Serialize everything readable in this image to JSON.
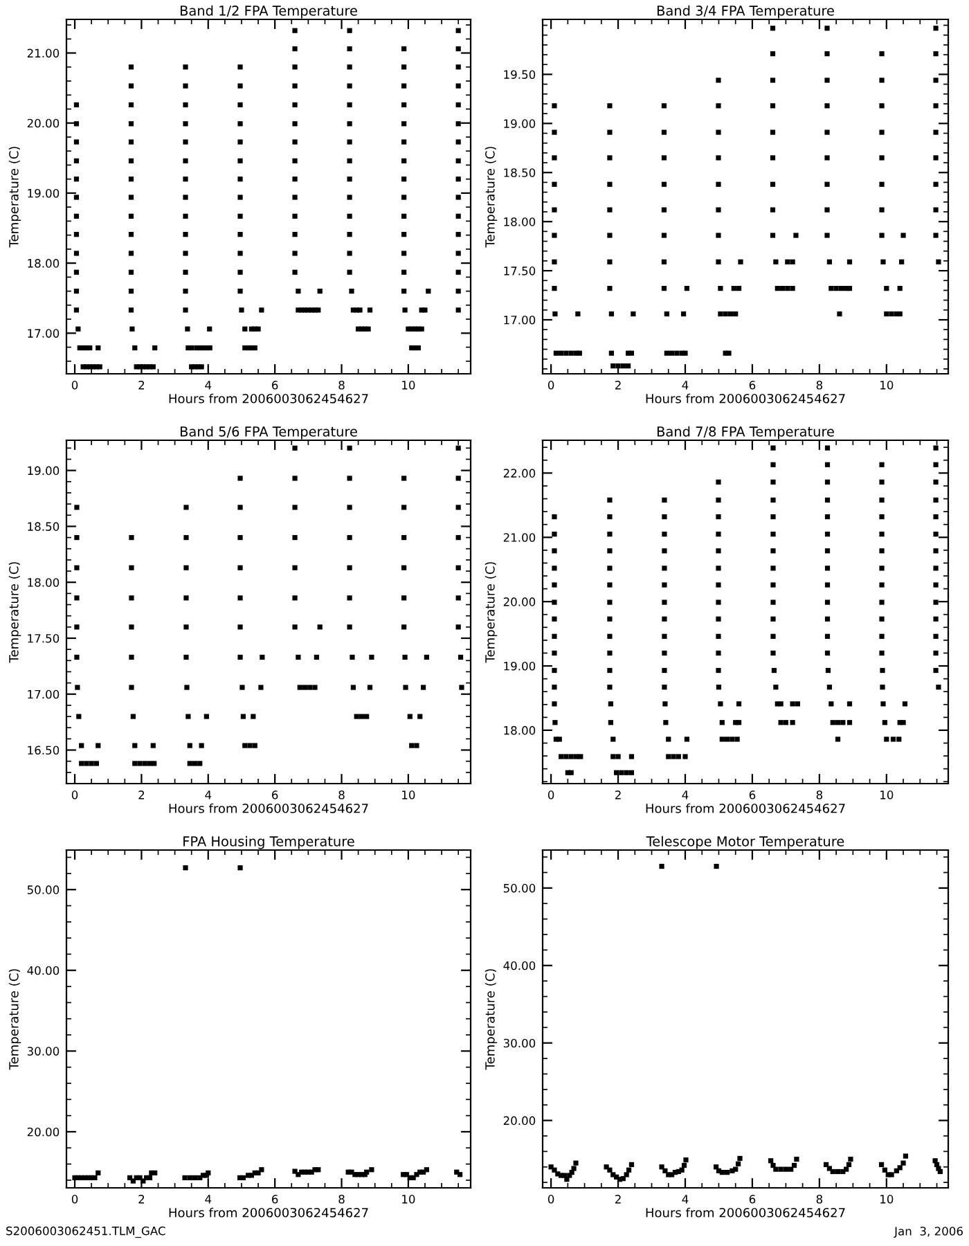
{
  "chart_data": [
    {
      "type": "scatter",
      "title": "Band 1/2 FPA Temperature",
      "xlabel": "Hours from 2006003062454627",
      "ylabel": "Temperature (C)",
      "marker": "square",
      "xlim": [
        -0.25,
        11.87
      ],
      "xticks": [
        0,
        2,
        4,
        6,
        8,
        10
      ],
      "ylim": [
        16.42,
        21.48
      ],
      "yticks": [
        {
          "value": 17,
          "label": "17.00"
        },
        {
          "value": 18,
          "label": "18.00"
        },
        {
          "value": 19,
          "label": "19.00"
        },
        {
          "value": 20,
          "label": "20.00"
        },
        {
          "value": 21,
          "label": "21.00"
        }
      ],
      "series": [
        {
          "color": "#000000",
          "x": [
            0.05,
            0.05,
            0.05,
            0.05,
            0.05,
            0.05,
            0.05,
            0.05,
            0.05,
            0.05,
            0.05,
            0.05,
            0.1,
            0.15,
            0.25,
            0.35,
            0.45,
            0.7,
            0.25,
            0.35,
            0.45,
            0.55,
            0.65,
            0.75
          ],
          "values": [
            20.26,
            19.99,
            19.73,
            19.46,
            19.2,
            18.94,
            18.67,
            18.41,
            18.14,
            17.87,
            17.6,
            17.33,
            17.06,
            16.79,
            16.79,
            16.79,
            16.79,
            16.79,
            16.52,
            16.52,
            16.52,
            16.52,
            16.52,
            16.52
          ]
        },
        {
          "color": "#000000",
          "x": [
            1.69,
            1.69,
            1.69,
            1.69,
            1.69,
            1.69,
            1.69,
            1.69,
            1.69,
            1.69,
            1.69,
            1.69,
            1.69,
            1.69,
            1.72,
            1.8,
            2.4,
            1.85,
            1.95,
            2.05,
            2.15,
            2.25,
            2.35
          ],
          "values": [
            20.8,
            20.53,
            20.26,
            19.99,
            19.73,
            19.46,
            19.2,
            18.94,
            18.67,
            18.41,
            18.14,
            17.87,
            17.6,
            17.33,
            17.06,
            16.79,
            16.79,
            16.52,
            16.52,
            16.52,
            16.52,
            16.52,
            16.52
          ]
        },
        {
          "color": "#000000",
          "x": [
            3.32,
            3.32,
            3.32,
            3.32,
            3.32,
            3.32,
            3.32,
            3.32,
            3.32,
            3.32,
            3.32,
            3.32,
            3.32,
            3.32,
            3.38,
            4.04,
            3.4,
            3.5,
            3.65,
            3.75,
            3.85,
            3.95,
            4.05,
            3.5,
            3.6,
            3.7,
            3.8
          ],
          "values": [
            20.8,
            20.53,
            20.26,
            19.99,
            19.73,
            19.46,
            19.2,
            18.94,
            18.67,
            18.41,
            18.14,
            17.87,
            17.6,
            17.33,
            17.06,
            17.06,
            16.79,
            16.79,
            16.79,
            16.79,
            16.79,
            16.79,
            16.79,
            16.52,
            16.52,
            16.52,
            16.52
          ]
        },
        {
          "color": "#000000",
          "x": [
            4.96,
            4.96,
            4.96,
            4.96,
            4.96,
            4.96,
            4.96,
            4.96,
            4.96,
            4.96,
            4.96,
            4.96,
            4.96,
            5.0,
            5.6,
            5.1,
            5.3,
            5.4,
            5.5,
            5.1,
            5.2,
            5.3,
            5.4
          ],
          "values": [
            20.8,
            20.53,
            20.26,
            19.99,
            19.73,
            19.46,
            19.2,
            18.94,
            18.67,
            18.41,
            18.14,
            17.87,
            17.6,
            17.33,
            17.33,
            17.06,
            17.06,
            17.06,
            17.06,
            16.79,
            16.79,
            16.79,
            16.79
          ]
        },
        {
          "color": "#000000",
          "x": [
            6.6,
            6.6,
            6.6,
            6.6,
            6.6,
            6.6,
            6.6,
            6.6,
            6.6,
            6.6,
            6.6,
            6.6,
            6.6,
            6.6,
            6.7,
            7.35,
            6.7,
            6.8,
            6.9,
            7.0,
            7.1,
            7.2,
            7.3
          ],
          "values": [
            21.32,
            21.06,
            20.8,
            20.53,
            20.26,
            19.99,
            19.73,
            19.46,
            19.2,
            18.94,
            18.67,
            18.41,
            18.14,
            17.87,
            17.6,
            17.6,
            17.33,
            17.33,
            17.33,
            17.33,
            17.33,
            17.33,
            17.33
          ]
        },
        {
          "color": "#000000",
          "x": [
            8.24,
            8.24,
            8.24,
            8.24,
            8.24,
            8.24,
            8.24,
            8.24,
            8.24,
            8.24,
            8.24,
            8.24,
            8.24,
            8.24,
            8.3,
            8.35,
            8.45,
            8.55,
            8.85,
            8.5,
            8.6,
            8.7,
            8.8
          ],
          "values": [
            21.32,
            21.06,
            20.8,
            20.53,
            20.26,
            19.99,
            19.73,
            19.46,
            19.2,
            18.94,
            18.67,
            18.41,
            18.14,
            17.87,
            17.6,
            17.33,
            17.33,
            17.33,
            17.33,
            17.06,
            17.06,
            17.06,
            17.06
          ]
        },
        {
          "color": "#000000",
          "x": [
            9.87,
            9.87,
            9.87,
            9.87,
            9.87,
            9.87,
            9.87,
            9.87,
            9.87,
            9.87,
            9.87,
            9.87,
            9.87,
            9.87,
            9.9,
            10.0,
            10.1,
            10.2,
            10.3,
            10.4,
            10.1,
            10.2,
            10.3,
            10.4,
            10.5,
            10.6
          ],
          "values": [
            21.06,
            20.8,
            20.53,
            20.26,
            19.99,
            19.73,
            19.46,
            19.2,
            18.94,
            18.67,
            18.41,
            18.14,
            17.87,
            17.6,
            17.33,
            17.06,
            17.06,
            17.06,
            17.06,
            17.06,
            16.79,
            16.79,
            16.79,
            17.33,
            17.33,
            17.6
          ]
        },
        {
          "color": "#000000",
          "x": [
            11.5,
            11.5,
            11.5,
            11.5,
            11.5,
            11.5,
            11.5,
            11.5,
            11.5,
            11.5,
            11.5,
            11.5,
            11.5,
            11.5,
            11.5,
            11.5
          ],
          "values": [
            21.32,
            21.06,
            20.8,
            20.53,
            20.26,
            19.99,
            19.73,
            19.46,
            19.2,
            18.94,
            18.67,
            18.41,
            18.14,
            17.87,
            17.6,
            17.33
          ]
        }
      ]
    },
    {
      "type": "scatter",
      "title": "Band 3/4 FPA Temperature",
      "xlabel": "Hours from 2006003062454627",
      "ylabel": "Temperature (C)",
      "marker": "square",
      "xlim": [
        -0.25,
        11.84
      ],
      "xticks": [
        0,
        2,
        4,
        6,
        8,
        10
      ],
      "ylim": [
        16.45,
        20.06
      ],
      "yticks": [
        {
          "value": 17,
          "label": "17.00"
        },
        {
          "value": 17.5,
          "label": "17.50"
        },
        {
          "value": 18,
          "label": "18.00"
        },
        {
          "value": 18.5,
          "label": "18.50"
        },
        {
          "value": 19,
          "label": "19.00"
        },
        {
          "value": 19.5,
          "label": "19.50"
        }
      ],
      "series": [
        {
          "color": "#000000",
          "x": [
            0.1,
            0.1,
            0.1,
            0.1,
            0.1,
            0.1,
            0.1,
            0.1,
            0.12,
            0.8,
            0.15,
            0.3,
            0.45,
            0.6,
            0.75,
            0.85
          ],
          "values": [
            19.18,
            18.91,
            18.65,
            18.38,
            18.12,
            17.86,
            17.59,
            17.32,
            17.06,
            17.06,
            16.66,
            16.66,
            16.66,
            16.66,
            16.66,
            16.66
          ]
        },
        {
          "color": "#000000",
          "x": [
            1.75,
            1.75,
            1.75,
            1.75,
            1.75,
            1.75,
            1.75,
            1.75,
            1.8,
            2.45,
            1.8,
            2.3,
            2.4,
            1.85,
            2.0,
            2.15,
            2.3
          ],
          "values": [
            19.18,
            18.91,
            18.65,
            18.38,
            18.12,
            17.86,
            17.59,
            17.32,
            17.06,
            17.06,
            16.66,
            16.66,
            16.66,
            16.53,
            16.53,
            16.53,
            16.53
          ]
        },
        {
          "color": "#000000",
          "x": [
            3.37,
            3.37,
            3.37,
            3.37,
            3.37,
            3.37,
            3.37,
            3.37,
            4.05,
            3.45,
            3.95,
            3.45,
            3.6,
            3.75,
            3.9,
            4.0
          ],
          "values": [
            19.18,
            18.91,
            18.65,
            18.38,
            18.12,
            17.86,
            17.59,
            17.32,
            17.32,
            17.06,
            17.06,
            16.66,
            16.66,
            16.66,
            16.66,
            16.66
          ]
        },
        {
          "color": "#000000",
          "x": [
            4.99,
            4.99,
            4.99,
            4.99,
            4.99,
            4.99,
            4.99,
            4.99,
            5.65,
            5.05,
            5.45,
            5.6,
            5.05,
            5.2,
            5.35,
            5.5,
            5.2,
            5.3
          ],
          "values": [
            19.44,
            19.18,
            18.91,
            18.65,
            18.38,
            18.12,
            17.86,
            17.59,
            17.59,
            17.32,
            17.32,
            17.32,
            17.06,
            17.06,
            17.06,
            17.06,
            16.66,
            16.66
          ]
        },
        {
          "color": "#000000",
          "x": [
            6.61,
            6.61,
            6.61,
            6.61,
            6.61,
            6.61,
            6.61,
            6.61,
            6.61,
            7.3,
            6.7,
            7.05,
            7.2,
            6.75,
            6.9,
            7.05,
            7.2
          ],
          "values": [
            19.97,
            19.71,
            19.44,
            19.18,
            18.91,
            18.65,
            18.38,
            18.12,
            17.86,
            17.86,
            17.59,
            17.59,
            17.59,
            17.32,
            17.32,
            17.32,
            17.32
          ]
        },
        {
          "color": "#000000",
          "x": [
            8.23,
            8.23,
            8.23,
            8.23,
            8.23,
            8.23,
            8.23,
            8.23,
            8.23,
            8.3,
            8.9,
            8.35,
            8.5,
            8.65,
            8.8,
            8.9,
            8.6
          ],
          "values": [
            19.97,
            19.71,
            19.44,
            19.18,
            18.91,
            18.65,
            18.38,
            18.12,
            17.86,
            17.59,
            17.59,
            17.32,
            17.32,
            17.32,
            17.32,
            17.32,
            17.06
          ]
        },
        {
          "color": "#000000",
          "x": [
            9.86,
            9.86,
            9.86,
            9.86,
            9.86,
            9.86,
            9.86,
            9.86,
            10.5,
            9.9,
            10.45,
            10.0,
            10.4,
            10.0,
            10.15,
            10.3,
            10.4
          ],
          "values": [
            19.71,
            19.44,
            19.18,
            18.91,
            18.65,
            18.38,
            18.12,
            17.86,
            17.86,
            17.59,
            17.59,
            17.32,
            17.32,
            17.06,
            17.06,
            17.06,
            17.06
          ]
        },
        {
          "color": "#000000",
          "x": [
            11.47,
            11.47,
            11.47,
            11.47,
            11.47,
            11.47,
            11.47,
            11.47,
            11.47,
            11.55
          ],
          "values": [
            19.97,
            19.71,
            19.44,
            19.18,
            18.91,
            18.65,
            18.38,
            18.12,
            17.86,
            17.59
          ]
        }
      ]
    },
    {
      "type": "scatter",
      "title": "Band 5/6 FPA Temperature",
      "xlabel": "Hours from 2006003062454627",
      "ylabel": "Temperature (C)",
      "marker": "square",
      "xlim": [
        -0.25,
        11.87
      ],
      "xticks": [
        0,
        2,
        4,
        6,
        8,
        10
      ],
      "ylim": [
        16.2,
        19.27
      ],
      "yticks": [
        {
          "value": 16.5,
          "label": "16.50"
        },
        {
          "value": 17,
          "label": "17.00"
        },
        {
          "value": 17.5,
          "label": "17.50"
        },
        {
          "value": 18,
          "label": "18.00"
        },
        {
          "value": 18.5,
          "label": "18.50"
        },
        {
          "value": 19,
          "label": "19.00"
        }
      ],
      "series": [
        {
          "color": "#000000",
          "x": [
            0.06,
            0.06,
            0.06,
            0.06,
            0.06,
            0.06,
            0.08,
            0.12,
            0.2,
            0.7,
            0.2,
            0.35,
            0.5,
            0.65
          ],
          "values": [
            18.67,
            18.4,
            18.13,
            17.86,
            17.6,
            17.33,
            17.06,
            16.8,
            16.54,
            16.54,
            16.38,
            16.38,
            16.38,
            16.38
          ]
        },
        {
          "color": "#000000",
          "x": [
            1.7,
            1.7,
            1.7,
            1.7,
            1.7,
            1.7,
            1.75,
            1.8,
            2.35,
            1.8,
            1.95,
            2.1,
            2.25,
            2.38
          ],
          "values": [
            18.4,
            18.13,
            17.86,
            17.6,
            17.33,
            17.06,
            16.8,
            16.54,
            16.54,
            16.38,
            16.38,
            16.38,
            16.38,
            16.38
          ]
        },
        {
          "color": "#000000",
          "x": [
            3.34,
            3.34,
            3.34,
            3.34,
            3.34,
            3.34,
            3.36,
            3.4,
            3.95,
            3.45,
            3.8,
            3.45,
            3.6,
            3.75
          ],
          "values": [
            18.67,
            18.4,
            18.13,
            17.86,
            17.6,
            17.33,
            17.06,
            16.8,
            16.8,
            16.54,
            16.54,
            16.38,
            16.38,
            16.38
          ]
        },
        {
          "color": "#000000",
          "x": [
            4.96,
            4.96,
            4.96,
            4.96,
            4.96,
            4.96,
            4.96,
            5.62,
            5.02,
            5.58,
            5.05,
            5.35,
            5.1,
            5.25,
            5.4
          ],
          "values": [
            18.93,
            18.67,
            18.4,
            18.13,
            17.86,
            17.6,
            17.33,
            17.33,
            17.06,
            17.06,
            16.8,
            16.8,
            16.54,
            16.54,
            16.54
          ]
        },
        {
          "color": "#000000",
          "x": [
            6.6,
            6.6,
            6.6,
            6.6,
            6.6,
            6.6,
            6.6,
            7.35,
            6.7,
            7.25,
            6.75,
            6.9,
            7.05,
            7.2
          ],
          "values": [
            19.2,
            18.93,
            18.67,
            18.4,
            18.13,
            17.86,
            17.6,
            17.6,
            17.33,
            17.33,
            17.06,
            17.06,
            17.06,
            17.06
          ]
        },
        {
          "color": "#000000",
          "x": [
            8.24,
            8.24,
            8.24,
            8.24,
            8.24,
            8.24,
            8.24,
            8.32,
            8.9,
            8.35,
            8.85,
            8.45,
            8.6,
            8.75
          ],
          "values": [
            19.2,
            18.93,
            18.67,
            18.4,
            18.13,
            17.86,
            17.6,
            17.33,
            17.33,
            17.06,
            17.06,
            16.8,
            16.8,
            16.8
          ]
        },
        {
          "color": "#000000",
          "x": [
            9.87,
            9.87,
            9.87,
            9.87,
            9.87,
            9.87,
            9.9,
            10.55,
            9.92,
            10.45,
            10.05,
            10.35,
            10.1,
            10.25
          ],
          "values": [
            18.93,
            18.67,
            18.4,
            18.13,
            17.86,
            17.6,
            17.33,
            17.33,
            17.06,
            17.06,
            16.8,
            16.8,
            16.54,
            16.54
          ]
        },
        {
          "color": "#000000",
          "x": [
            11.5,
            11.5,
            11.5,
            11.5,
            11.5,
            11.5,
            11.5,
            11.57,
            11.6
          ],
          "values": [
            19.2,
            18.93,
            18.67,
            18.4,
            18.13,
            17.86,
            17.6,
            17.33,
            17.06
          ]
        }
      ]
    },
    {
      "type": "scatter",
      "title": "Band 7/8 FPA Temperature",
      "xlabel": "Hours from 2006003062454627",
      "ylabel": "Temperature (C)",
      "marker": "square",
      "xlim": [
        -0.25,
        11.84
      ],
      "xticks": [
        0,
        2,
        4,
        6,
        8,
        10
      ],
      "ylim": [
        17.17,
        22.51
      ],
      "yticks": [
        {
          "value": 18,
          "label": "18.00"
        },
        {
          "value": 19,
          "label": "19.00"
        },
        {
          "value": 20,
          "label": "20.00"
        },
        {
          "value": 21,
          "label": "21.00"
        },
        {
          "value": 22,
          "label": "22.00"
        }
      ],
      "series": [
        {
          "color": "#000000",
          "x": [
            0.1,
            0.1,
            0.1,
            0.1,
            0.1,
            0.1,
            0.1,
            0.1,
            0.1,
            0.1,
            0.1,
            0.1,
            0.12,
            0.15,
            0.25,
            0.3,
            0.45,
            0.6,
            0.75,
            0.88,
            0.5,
            0.6
          ],
          "values": [
            21.32,
            21.05,
            20.79,
            20.52,
            20.26,
            19.99,
            19.73,
            19.46,
            19.2,
            18.93,
            18.67,
            18.41,
            18.12,
            17.86,
            17.86,
            17.59,
            17.59,
            17.59,
            17.59,
            17.59,
            17.34,
            17.34
          ]
        },
        {
          "color": "#000000",
          "x": [
            1.75,
            1.75,
            1.75,
            1.75,
            1.75,
            1.75,
            1.75,
            1.75,
            1.75,
            1.75,
            1.75,
            1.75,
            1.78,
            1.78,
            1.85,
            1.85,
            2.0,
            2.4,
            1.95,
            2.1,
            2.25,
            2.4
          ],
          "values": [
            21.58,
            21.32,
            21.05,
            20.79,
            20.52,
            20.26,
            19.99,
            19.73,
            19.46,
            19.2,
            18.93,
            18.67,
            18.41,
            18.12,
            17.86,
            17.59,
            17.59,
            17.59,
            17.34,
            17.34,
            17.34,
            17.34
          ]
        },
        {
          "color": "#000000",
          "x": [
            3.38,
            3.38,
            3.38,
            3.38,
            3.38,
            3.38,
            3.38,
            3.38,
            3.38,
            3.38,
            3.38,
            3.38,
            3.4,
            3.42,
            3.5,
            4.05,
            3.5,
            3.65,
            3.8,
            4.0
          ],
          "values": [
            21.58,
            21.32,
            21.05,
            20.79,
            20.52,
            20.26,
            19.99,
            19.73,
            19.46,
            19.2,
            18.93,
            18.67,
            18.41,
            18.12,
            17.86,
            17.86,
            17.59,
            17.59,
            17.59,
            17.59
          ]
        },
        {
          "color": "#000000",
          "x": [
            4.99,
            4.99,
            4.99,
            4.99,
            4.99,
            4.99,
            4.99,
            4.99,
            4.99,
            4.99,
            4.99,
            4.99,
            5.0,
            5.05,
            5.6,
            5.1,
            5.5,
            5.6,
            5.1,
            5.25,
            5.4,
            5.55
          ],
          "values": [
            21.86,
            21.58,
            21.32,
            21.05,
            20.79,
            20.52,
            20.26,
            19.99,
            19.73,
            19.46,
            19.2,
            18.93,
            18.67,
            18.41,
            18.41,
            18.12,
            18.12,
            18.12,
            17.86,
            17.86,
            17.86,
            17.86
          ]
        },
        {
          "color": "#000000",
          "x": [
            6.62,
            6.62,
            6.62,
            6.62,
            6.62,
            6.62,
            6.62,
            6.62,
            6.62,
            6.62,
            6.62,
            6.62,
            6.62,
            6.65,
            6.7,
            6.75,
            6.85,
            7.2,
            7.35,
            6.85,
            7.0,
            7.2
          ],
          "values": [
            22.39,
            22.13,
            21.86,
            21.58,
            21.32,
            21.05,
            20.79,
            20.52,
            20.26,
            19.99,
            19.73,
            19.46,
            19.2,
            18.93,
            18.67,
            18.41,
            18.41,
            18.41,
            18.41,
            18.12,
            18.12,
            18.12
          ]
        },
        {
          "color": "#000000",
          "x": [
            8.24,
            8.24,
            8.24,
            8.24,
            8.24,
            8.24,
            8.24,
            8.24,
            8.24,
            8.24,
            8.24,
            8.24,
            8.24,
            8.26,
            8.3,
            8.35,
            8.9,
            8.4,
            8.55,
            8.7,
            8.9,
            8.55
          ],
          "values": [
            22.39,
            22.13,
            21.86,
            21.58,
            21.32,
            21.05,
            20.79,
            20.52,
            20.26,
            19.99,
            19.73,
            19.46,
            19.2,
            18.93,
            18.67,
            18.41,
            18.41,
            18.12,
            18.12,
            18.12,
            18.12,
            17.86
          ]
        },
        {
          "color": "#000000",
          "x": [
            9.86,
            9.86,
            9.86,
            9.86,
            9.86,
            9.86,
            9.86,
            9.86,
            9.86,
            9.86,
            9.86,
            9.86,
            9.88,
            9.88,
            9.9,
            10.55,
            9.95,
            10.4,
            10.5,
            10.0,
            10.2,
            10.37
          ],
          "values": [
            22.13,
            21.86,
            21.58,
            21.32,
            21.05,
            20.79,
            20.52,
            20.26,
            19.99,
            19.73,
            19.46,
            19.2,
            18.93,
            18.67,
            18.41,
            18.41,
            18.12,
            18.12,
            18.12,
            17.86,
            17.86,
            17.86
          ]
        },
        {
          "color": "#000000",
          "x": [
            11.47,
            11.47,
            11.47,
            11.47,
            11.47,
            11.47,
            11.47,
            11.47,
            11.47,
            11.47,
            11.47,
            11.47,
            11.47,
            11.47,
            11.55
          ],
          "values": [
            22.39,
            22.13,
            21.86,
            21.58,
            21.32,
            21.05,
            20.79,
            20.52,
            20.26,
            19.99,
            19.73,
            19.46,
            19.2,
            18.93,
            18.67
          ]
        }
      ]
    },
    {
      "type": "scatter",
      "title": "FPA Housing Temperature",
      "xlabel": "Hours from 2006003062454627",
      "ylabel": "Temperature (C)",
      "marker": "square",
      "xlim": [
        -0.25,
        11.87
      ],
      "xticks": [
        0,
        2,
        4,
        6,
        8,
        10
      ],
      "ylim": [
        13.05,
        54.9
      ],
      "yticks": [
        {
          "value": 20,
          "label": "20.00"
        },
        {
          "value": 30,
          "label": "30.00"
        },
        {
          "value": 40,
          "label": "40.00"
        },
        {
          "value": 50,
          "label": "50.00"
        }
      ],
      "annotations": [
        "S2006003062451.TLM_GAC"
      ],
      "series": [
        {
          "color": "#000000",
          "x": [
            0,
            0.1,
            0.2,
            0.3,
            0.4,
            0.5,
            0.6,
            0.7
          ],
          "values": [
            14.3,
            14.3,
            14.3,
            14.3,
            14.3,
            14.3,
            14.3,
            14.9
          ]
        },
        {
          "color": "#000000",
          "x": [
            1.65,
            1.75,
            1.85,
            1.95,
            2.05,
            2.15,
            2.25,
            2.3,
            2.4
          ],
          "values": [
            14.3,
            13.9,
            14.3,
            14.3,
            13.9,
            14.3,
            14.3,
            14.9,
            14.9
          ]
        },
        {
          "color": "#000000",
          "x": [
            3.3,
            3.32,
            3.45,
            3.6,
            3.75,
            3.85,
            3.95,
            4.0
          ],
          "values": [
            14.3,
            52.7,
            14.3,
            14.3,
            14.3,
            14.6,
            14.6,
            14.9
          ]
        },
        {
          "color": "#000000",
          "x": [
            4.95,
            4.96,
            5.05,
            5.2,
            5.3,
            5.4,
            5.5,
            5.6
          ],
          "values": [
            14.3,
            52.7,
            14.3,
            14.6,
            14.6,
            14.9,
            14.9,
            15.3
          ]
        },
        {
          "color": "#000000",
          "x": [
            6.6,
            6.7,
            6.8,
            6.9,
            7.0,
            7.1,
            7.2,
            7.3
          ],
          "values": [
            15.1,
            14.7,
            15.0,
            15.0,
            15.0,
            15.0,
            15.3,
            15.3
          ]
        },
        {
          "color": "#000000",
          "x": [
            8.2,
            8.3,
            8.4,
            8.5,
            8.6,
            8.7,
            8.75,
            8.9
          ],
          "values": [
            15.0,
            15.0,
            14.7,
            14.7,
            14.7,
            14.7,
            15.0,
            15.3
          ]
        },
        {
          "color": "#000000",
          "x": [
            9.85,
            9.95,
            10.05,
            10.15,
            10.25,
            10.35,
            10.45,
            10.55
          ],
          "values": [
            14.7,
            14.7,
            14.3,
            14.3,
            14.7,
            15.0,
            15.0,
            15.3
          ]
        },
        {
          "color": "#000000",
          "x": [
            11.45,
            11.55
          ],
          "values": [
            15.0,
            14.7
          ]
        }
      ]
    },
    {
      "type": "scatter",
      "title": "Telescope Motor Temperature",
      "xlabel": "Hours from 2006003062454627",
      "ylabel": "Temperature (C)",
      "marker": "square",
      "xlim": [
        -0.25,
        11.84
      ],
      "xticks": [
        0,
        2,
        4,
        6,
        8,
        10
      ],
      "ylim": [
        11.3,
        54.9
      ],
      "yticks": [
        {
          "value": 20,
          "label": "20.00"
        },
        {
          "value": 30,
          "label": "30.00"
        },
        {
          "value": 40,
          "label": "40.00"
        },
        {
          "value": 50,
          "label": "50.00"
        }
      ],
      "annotations": [
        "Jan  3, 2006"
      ],
      "series": [
        {
          "color": "#000000",
          "x": [
            0.0,
            0.1,
            0.2,
            0.3,
            0.4,
            0.47,
            0.55,
            0.62,
            0.68,
            0.74
          ],
          "values": [
            14.0,
            13.6,
            13.1,
            12.9,
            12.9,
            12.4,
            12.9,
            13.3,
            13.8,
            14.5
          ]
        },
        {
          "color": "#000000",
          "x": [
            1.65,
            1.75,
            1.85,
            1.95,
            2.05,
            2.15,
            2.25,
            2.32,
            2.4
          ],
          "values": [
            14.0,
            13.6,
            13.0,
            12.7,
            12.4,
            12.5,
            13.0,
            13.6,
            14.3
          ]
        },
        {
          "color": "#000000",
          "x": [
            3.3,
            3.3,
            3.4,
            3.5,
            3.6,
            3.7,
            3.8,
            3.9,
            3.97,
            4.02
          ],
          "values": [
            52.8,
            14.0,
            13.5,
            13.0,
            13.0,
            13.3,
            13.4,
            13.6,
            14.2,
            14.9
          ]
        },
        {
          "color": "#000000",
          "x": [
            4.92,
            4.93,
            5.0,
            5.1,
            5.25,
            5.4,
            5.5,
            5.58,
            5.63
          ],
          "values": [
            14.0,
            52.8,
            13.5,
            13.3,
            13.3,
            13.5,
            13.7,
            14.4,
            15.1
          ]
        },
        {
          "color": "#000000",
          "x": [
            6.55,
            6.62,
            6.7,
            6.85,
            7.0,
            7.15,
            7.25,
            7.32
          ],
          "values": [
            14.8,
            14.2,
            13.7,
            13.7,
            13.7,
            13.7,
            14.2,
            15.0
          ]
        },
        {
          "color": "#000000",
          "x": [
            8.2,
            8.3,
            8.4,
            8.55,
            8.7,
            8.8,
            8.88,
            8.93
          ],
          "values": [
            14.3,
            13.8,
            13.4,
            13.4,
            13.4,
            13.7,
            14.3,
            15.0
          ]
        },
        {
          "color": "#000000",
          "x": [
            9.85,
            9.95,
            10.05,
            10.15,
            10.3,
            10.4,
            10.5,
            10.57
          ],
          "values": [
            14.3,
            13.6,
            13.0,
            13.0,
            13.5,
            13.9,
            14.5,
            15.4
          ]
        },
        {
          "color": "#000000",
          "x": [
            11.45,
            11.5,
            11.55,
            11.6
          ],
          "values": [
            14.8,
            14.3,
            13.8,
            13.4
          ]
        }
      ]
    }
  ]
}
